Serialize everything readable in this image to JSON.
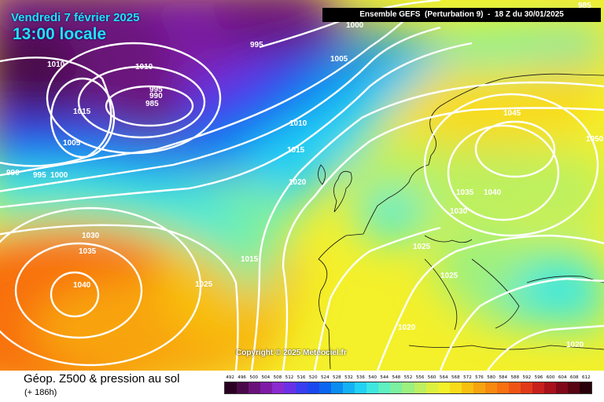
{
  "header": {
    "date": "Vendredi 7 février 2025",
    "local_time": "13:00 locale",
    "run_info": "Ensemble GEFS  (Perturbation 9)  -  18 Z du 30/01/2025"
  },
  "copyright": "Copyright © 2025 Meteociel.fr",
  "footer": {
    "title": "Géop. Z500 & pression au sol",
    "forecast_hour": "(+ 186h)"
  },
  "legend": {
    "ticks": [
      "492",
      "496",
      "500",
      "504",
      "508",
      "512",
      "516",
      "520",
      "524",
      "528",
      "532",
      "536",
      "540",
      "544",
      "548",
      "552",
      "556",
      "560",
      "564",
      "568",
      "572",
      "576",
      "580",
      "584",
      "588",
      "592",
      "596",
      "600",
      "604",
      "608",
      "612"
    ],
    "colors": [
      "#2a0022",
      "#4a0a4a",
      "#6a127a",
      "#7e1aa6",
      "#8a2ad0",
      "#6a30e8",
      "#3a3ef0",
      "#1a48f0",
      "#0a66f0",
      "#0a8cf0",
      "#14b2f4",
      "#22d2f4",
      "#3ee6e0",
      "#5ef0c0",
      "#7cf0a0",
      "#9cf080",
      "#bcf060",
      "#dcf040",
      "#f4f02a",
      "#f8dc1a",
      "#f8c010",
      "#f8a410",
      "#f88a10",
      "#f87010",
      "#f05414",
      "#e03a18",
      "#c8201c",
      "#a8101c",
      "#800818",
      "#580412",
      "#28000a"
    ]
  },
  "isobar_labels": [
    "1000",
    "985",
    "995",
    "1010",
    "1010",
    "995",
    "990",
    "985",
    "1015",
    "1005",
    "990",
    "995",
    "1000",
    "1005",
    "1010",
    "1015",
    "1020",
    "1045",
    "1050",
    "1035",
    "1040",
    "1030",
    "1030",
    "1035",
    "1025",
    "1015",
    "1040",
    "1025",
    "1025",
    "1020",
    "1020"
  ]
}
